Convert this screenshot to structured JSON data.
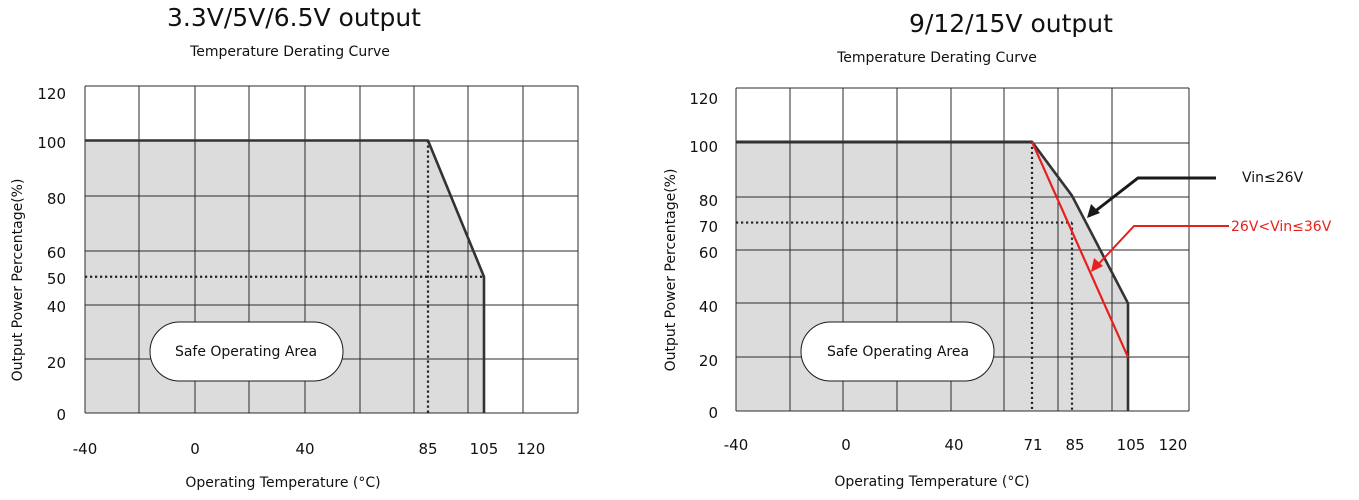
{
  "chart_data": [
    {
      "type": "area",
      "title": "3.3V/5V/6.5V output",
      "subtitle": "Temperature Derating Curve",
      "xlabel": "Operating Temperature (°C)",
      "ylabel": "Output Power Percentage(%)",
      "x_tick_labels": [
        "-40",
        "0",
        "40",
        "85",
        "105",
        "120"
      ],
      "y_tick_labels": [
        "120",
        "100",
        "80",
        "60",
        "50",
        "40",
        "20",
        "0"
      ],
      "annotation": "Safe Operating Area",
      "grid": true,
      "series": [
        {
          "x": [
            -40,
            85,
            105,
            105
          ],
          "y": [
            100,
            100,
            50,
            0
          ],
          "color": "#333333"
        }
      ],
      "guides": [
        {
          "x": [
            85,
            85
          ],
          "y": [
            100,
            0
          ]
        },
        {
          "x": [
            -40,
            105
          ],
          "y": [
            50,
            50
          ]
        }
      ]
    },
    {
      "type": "area",
      "title": "9/12/15V output",
      "subtitle": "Temperature Derating Curve",
      "xlabel": "Operating Temperature (°C)",
      "ylabel": "Output Power Percentage(%)",
      "x_tick_labels": [
        "-40",
        "0",
        "40",
        "71",
        "85",
        "105",
        "120"
      ],
      "y_tick_labels": [
        "120",
        "100",
        "80",
        "70",
        "60",
        "40",
        "20",
        "0"
      ],
      "annotation": "Safe Operating Area",
      "grid": true,
      "series": [
        {
          "name": "Vin≤26V",
          "x": [
            -40,
            71,
            85,
            105,
            105
          ],
          "y": [
            100,
            100,
            80,
            40,
            0
          ],
          "color": "#333333"
        },
        {
          "name": "26V<Vin≤36V",
          "x": [
            71,
            105
          ],
          "y": [
            100,
            20
          ],
          "color": "#e8201c"
        }
      ],
      "guides": [
        {
          "x": [
            71,
            71
          ],
          "y": [
            100,
            0
          ]
        },
        {
          "x": [
            85,
            85
          ],
          "y": [
            70,
            0
          ]
        },
        {
          "x": [
            -40,
            85
          ],
          "y": [
            70,
            70
          ]
        }
      ]
    }
  ]
}
